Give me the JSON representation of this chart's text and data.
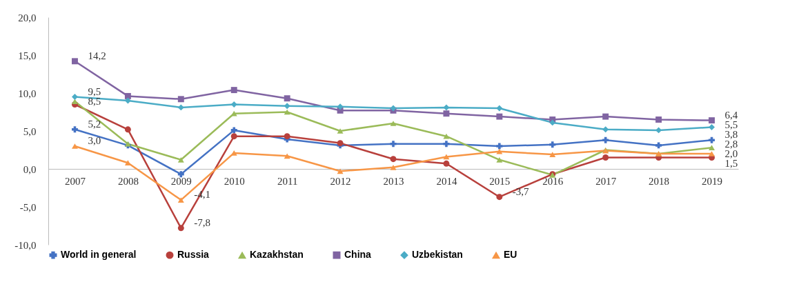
{
  "chart_data": {
    "type": "line",
    "categories": [
      "2007",
      "2008",
      "2009",
      "2010",
      "2011",
      "2012",
      "2013",
      "2014",
      "2015",
      "2016",
      "2017",
      "2018",
      "2019"
    ],
    "ylim": [
      -10,
      20
    ],
    "yticks": [
      {
        "value": -10,
        "label": "-10,0"
      },
      {
        "value": -5,
        "label": "-5,0"
      },
      {
        "value": 0,
        "label": "0,0"
      },
      {
        "value": 5,
        "label": "5,0"
      },
      {
        "value": 10,
        "label": "10,0"
      },
      {
        "value": 15,
        "label": "15,0"
      },
      {
        "value": 20,
        "label": "20,0"
      }
    ],
    "legend": "bottom",
    "series": [
      {
        "name": "World in general",
        "color": "#4472c4",
        "marker": "cross",
        "values": [
          5.2,
          3.1,
          -0.7,
          5.1,
          3.9,
          3.1,
          3.3,
          3.3,
          3.0,
          3.2,
          3.8,
          3.1,
          3.8
        ],
        "value_labels": [
          "5,2",
          null,
          null,
          null,
          null,
          null,
          null,
          null,
          null,
          null,
          null,
          null,
          "3,8"
        ]
      },
      {
        "name": "Russia",
        "color": "#b8403c",
        "marker": "circle",
        "values": [
          8.5,
          5.2,
          -7.8,
          4.3,
          4.3,
          3.4,
          1.3,
          0.7,
          -3.7,
          -0.7,
          1.5,
          1.5,
          1.5
        ],
        "value_labels": [
          "8,5",
          null,
          "-7,8",
          null,
          null,
          null,
          null,
          null,
          "-3,7",
          null,
          null,
          null,
          "1,5"
        ]
      },
      {
        "name": "Kazakhstan",
        "color": "#9bbb59",
        "marker": "triangle",
        "values": [
          8.9,
          3.3,
          1.2,
          7.3,
          7.5,
          5.0,
          6.0,
          4.3,
          1.2,
          -0.8,
          2.5,
          2.0,
          2.8
        ],
        "value_labels": [
          null,
          null,
          null,
          null,
          null,
          null,
          null,
          null,
          null,
          null,
          null,
          null,
          "2,8"
        ]
      },
      {
        "name": "China",
        "color": "#8064a2",
        "marker": "square",
        "values": [
          14.2,
          9.6,
          9.2,
          10.4,
          9.3,
          7.7,
          7.7,
          7.3,
          6.9,
          6.5,
          6.9,
          6.5,
          6.4
        ],
        "value_labels": [
          "14,2",
          null,
          null,
          null,
          null,
          null,
          null,
          null,
          null,
          null,
          null,
          null,
          "6,4"
        ]
      },
      {
        "name": "Uzbekistan",
        "color": "#4bacc6",
        "marker": "diamond",
        "values": [
          9.5,
          9.0,
          8.1,
          8.5,
          8.3,
          8.2,
          8.0,
          8.1,
          8.0,
          6.1,
          5.2,
          5.1,
          5.5
        ],
        "value_labels": [
          "9,5",
          null,
          null,
          null,
          null,
          null,
          null,
          null,
          null,
          null,
          null,
          null,
          "5,5"
        ]
      },
      {
        "name": "EU",
        "color": "#f79646",
        "marker": "triangle",
        "values": [
          3.0,
          0.8,
          -4.1,
          2.1,
          1.7,
          -0.3,
          0.2,
          1.6,
          2.3,
          1.9,
          2.4,
          2.0,
          2.0
        ],
        "value_labels": [
          "3,0",
          null,
          "-4,1",
          null,
          null,
          null,
          null,
          null,
          null,
          null,
          null,
          null,
          "2,0"
        ]
      }
    ]
  }
}
